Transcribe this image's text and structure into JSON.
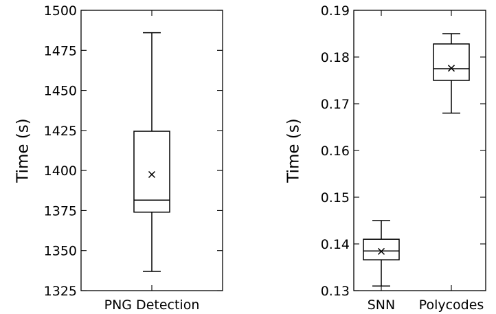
{
  "chart_data": [
    {
      "type": "box",
      "ylabel": "Time (s)",
      "ylim": [
        1325,
        1500
      ],
      "yticks": [
        "1325",
        "1350",
        "1375",
        "1400",
        "1425",
        "1450",
        "1475",
        "1500"
      ],
      "categories": [
        "PNG Detection"
      ],
      "boxes": [
        {
          "category": "PNG Detection",
          "whisker_low": 1337,
          "q1": 1374,
          "median": 1381.5,
          "q3": 1424.5,
          "whisker_high": 1486,
          "mean": 1397.5
        }
      ],
      "grid": false,
      "legend": false
    },
    {
      "type": "box",
      "ylabel": "Time (s)",
      "ylim": [
        0.13,
        0.19
      ],
      "yticks": [
        "0.13",
        "0.14",
        "0.15",
        "0.16",
        "0.17",
        "0.18",
        "0.19"
      ],
      "categories": [
        "SNN",
        "Polycodes"
      ],
      "boxes": [
        {
          "category": "SNN",
          "whisker_low": 0.131,
          "q1": 0.1366,
          "median": 0.1385,
          "q3": 0.141,
          "whisker_high": 0.145,
          "mean": 0.1384
        },
        {
          "category": "Polycodes",
          "whisker_low": 0.168,
          "q1": 0.175,
          "median": 0.1775,
          "q3": 0.1828,
          "whisker_high": 0.185,
          "mean": 0.1776
        }
      ],
      "grid": false,
      "legend": false
    }
  ]
}
